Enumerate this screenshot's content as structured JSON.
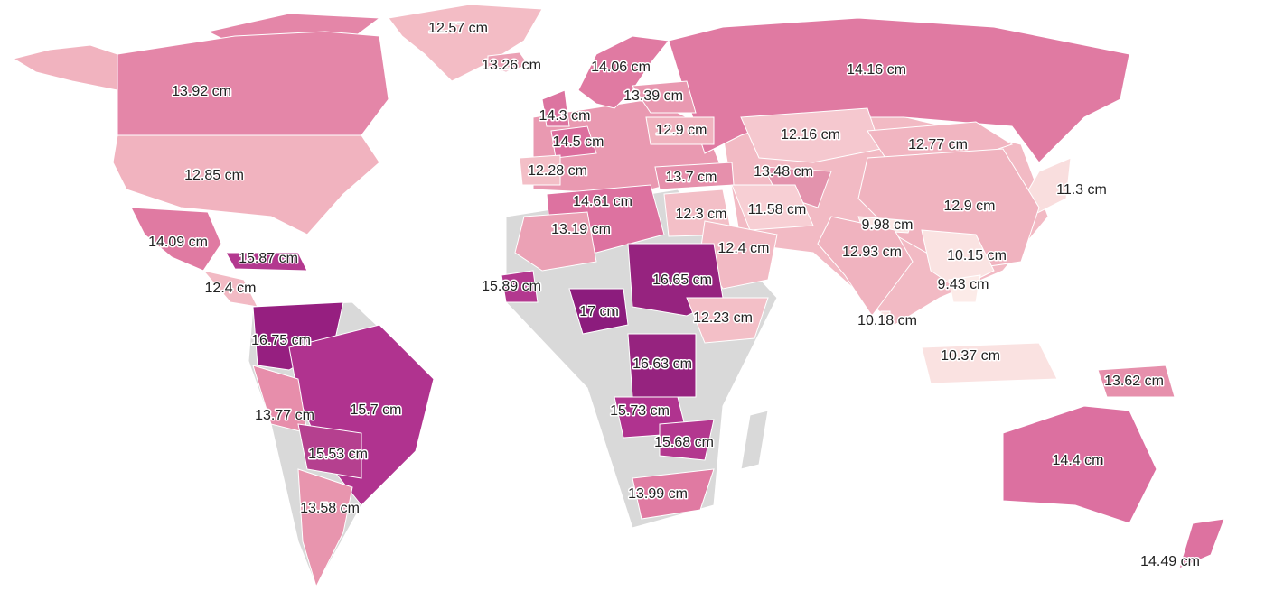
{
  "map": {
    "regions": [
      {
        "label": "12.57 cm",
        "color": "#f3bcc5"
      },
      {
        "label": "13.26 cm",
        "color": "#eba1b5"
      },
      {
        "label": "14.06 cm",
        "color": "#e07aa2"
      },
      {
        "label": "13.92 cm",
        "color": "#e486a8"
      },
      {
        "label": "14.16 cm",
        "color": "#e07aa2"
      },
      {
        "label": "13.39 cm",
        "color": "#e999b1"
      },
      {
        "label": "14.3 cm",
        "color": "#dc74a0"
      },
      {
        "label": "12.9 cm",
        "color": "#f0b3bf"
      },
      {
        "label": "14.5 cm",
        "color": "#dc6e9e"
      },
      {
        "label": "12.16 cm",
        "color": "#f5c8cf"
      },
      {
        "label": "12.77 cm",
        "color": "#f1b5c1"
      },
      {
        "label": "12.85 cm",
        "color": "#f1b3bf"
      },
      {
        "label": "12.28 cm",
        "color": "#f3bfc7"
      },
      {
        "label": "13.7 cm",
        "color": "#e690ac"
      },
      {
        "label": "13.48 cm",
        "color": "#e393ad"
      },
      {
        "label": "11.3 cm",
        "color": "#f9dede"
      },
      {
        "label": "14.61 cm",
        "color": "#dd72a0"
      },
      {
        "label": "12.3 cm",
        "color": "#f3bfc7"
      },
      {
        "label": "11.58 cm",
        "color": "#f7cfd4"
      },
      {
        "label": "12.9 cm",
        "color": "#f0b3bf"
      },
      {
        "label": "13.19 cm",
        "color": "#eba1b5"
      },
      {
        "label": "9.98 cm",
        "color": "#fbe6e4"
      },
      {
        "label": "14.09 cm",
        "color": "#e07aa2"
      },
      {
        "label": "12.4 cm",
        "color": "#f2bac4"
      },
      {
        "label": "12.93 cm",
        "color": "#f0b3bf"
      },
      {
        "label": "10.15 cm",
        "color": "#fae3e2"
      },
      {
        "label": "15.87 cm",
        "color": "#b3388f"
      },
      {
        "label": "12.4 cm",
        "color": "#f2bac4"
      },
      {
        "label": "15.89 cm",
        "color": "#b3388f"
      },
      {
        "label": "16.65 cm",
        "color": "#96237f"
      },
      {
        "label": "9.43 cm",
        "color": "#fcebe8"
      },
      {
        "label": "17 cm",
        "color": "#8c1c7d"
      },
      {
        "label": "12.23 cm",
        "color": "#f3bfc7"
      },
      {
        "label": "10.18 cm",
        "color": "#fae3e2"
      },
      {
        "label": "16.75 cm",
        "color": "#961f80"
      },
      {
        "label": "16.63 cm",
        "color": "#96237f"
      },
      {
        "label": "10.37 cm",
        "color": "#fae2e1"
      },
      {
        "label": "13.62 cm",
        "color": "#e690ac"
      },
      {
        "label": "15.7 cm",
        "color": "#b0338f"
      },
      {
        "label": "13.77 cm",
        "color": "#e78eab"
      },
      {
        "label": "15.73 cm",
        "color": "#b0338f"
      },
      {
        "label": "15.68 cm",
        "color": "#b3388f"
      },
      {
        "label": "15.53 cm",
        "color": "#b5408f"
      },
      {
        "label": "14.4 cm",
        "color": "#dc70a0"
      },
      {
        "label": "13.99 cm",
        "color": "#e07aa2"
      },
      {
        "label": "13.58 cm",
        "color": "#e895ae"
      },
      {
        "label": "14.49 cm",
        "color": "#dd72a0"
      }
    ]
  }
}
